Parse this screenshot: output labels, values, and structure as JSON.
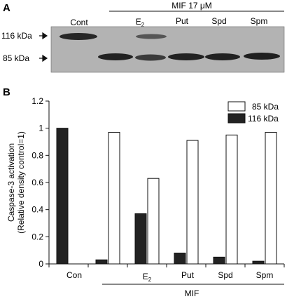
{
  "panel_a": {
    "label": "A",
    "header": "MIF 17 μM",
    "lane_labels": [
      "Cont",
      "E2",
      "Put",
      "Spd",
      "Spm"
    ],
    "band_labels": [
      "116 kDa",
      "85 kDa"
    ]
  },
  "panel_b": {
    "label": "B"
  },
  "chart_data": {
    "type": "bar",
    "title": "",
    "ylabel_lines": [
      "Caspase-3 activation",
      "(Relative density control=1)"
    ],
    "xlabel": "",
    "group_label": "MIF",
    "categories": [
      "Con",
      "",
      "E2",
      "Put",
      "Spd",
      "Spm"
    ],
    "series": [
      {
        "name": "85 kDa",
        "color": "#ffffff",
        "values": [
          null,
          0.97,
          0.63,
          0.91,
          0.95,
          0.97
        ]
      },
      {
        "name": "116 kDa",
        "color": "#222222",
        "values": [
          1.0,
          0.03,
          0.37,
          0.08,
          0.05,
          0.02
        ]
      }
    ],
    "ylim": [
      0,
      1.2
    ],
    "yticks": [
      "0",
      "0.2",
      "0.4",
      "0.6",
      "0.8",
      "1",
      "1.2"
    ],
    "grid": false,
    "legend": "top-right"
  }
}
